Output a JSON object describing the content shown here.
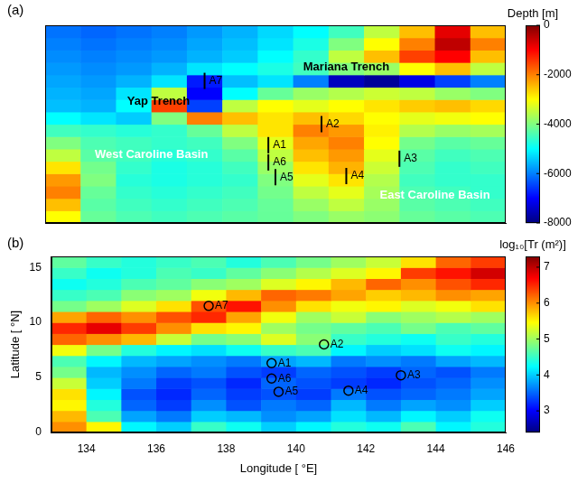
{
  "chart_data": [
    {
      "type": "heatmap",
      "panel_label": "(a)",
      "tick_labels": false,
      "grid": false,
      "xlim": [
        133,
        146
      ],
      "ylim": [
        0,
        16
      ],
      "x_edges": [
        133,
        134,
        135,
        136,
        137,
        138,
        139,
        140,
        141,
        142,
        143,
        144,
        145,
        146
      ],
      "y_edges": [
        0,
        1,
        2,
        3,
        4,
        5,
        6,
        7,
        8,
        9,
        10,
        11,
        12,
        13,
        14,
        15,
        16
      ],
      "cells": [
        [
          -3000,
          -4200,
          -4400,
          -4500,
          -4400,
          -4300,
          -4200,
          -4000,
          -3800,
          -3900,
          -4200,
          -4300,
          -4400
        ],
        [
          -2500,
          -4300,
          -4500,
          -4600,
          -4500,
          -4400,
          -4200,
          -3800,
          -3500,
          -3800,
          -4300,
          -4400,
          -4500
        ],
        [
          -2000,
          -4200,
          -4600,
          -4700,
          -4600,
          -4500,
          -4100,
          -3500,
          -3200,
          -3700,
          -4400,
          -4500,
          -4600
        ],
        [
          -2200,
          -4000,
          -4700,
          -4800,
          -4700,
          -4600,
          -4000,
          -3200,
          -2800,
          -3600,
          -4500,
          -4600,
          -4600
        ],
        [
          -2800,
          -4100,
          -4600,
          -4800,
          -4700,
          -4500,
          -3800,
          -2800,
          -2400,
          -3400,
          -4400,
          -4600,
          -4500
        ],
        [
          -3500,
          -4300,
          -4500,
          -4700,
          -4600,
          -4300,
          -3500,
          -2500,
          -2200,
          -3200,
          -4300,
          -4500,
          -4400
        ],
        [
          -4000,
          -4400,
          -4500,
          -4600,
          -4500,
          -4000,
          -3200,
          -2300,
          -2000,
          -3000,
          -4100,
          -4300,
          -4200
        ],
        [
          -4500,
          -4600,
          -4700,
          -4600,
          -4200,
          -3500,
          -2800,
          -2000,
          -2200,
          -2900,
          -3600,
          -3800,
          -3700
        ],
        [
          -5000,
          -5200,
          -5400,
          -4000,
          -2000,
          -2500,
          -2800,
          -2500,
          -2700,
          -3000,
          -3200,
          -3100,
          -3000
        ],
        [
          -5500,
          -5600,
          -5000,
          -1500,
          -6500,
          -3500,
          -3000,
          -3200,
          -3000,
          -2800,
          -2600,
          -2500,
          -2700
        ],
        [
          -5600,
          -5700,
          -5200,
          -3500,
          -7000,
          -5000,
          -4200,
          -3800,
          -3600,
          -3400,
          -3500,
          -3800,
          -4000
        ],
        [
          -5700,
          -5800,
          -5600,
          -5200,
          -6800,
          -5500,
          -5200,
          -6000,
          -7500,
          -7800,
          -7200,
          -6500,
          -6000
        ],
        [
          -5800,
          -5900,
          -5800,
          -5600,
          -5200,
          -5000,
          -4800,
          -4500,
          -4000,
          -3800,
          -3000,
          -2500,
          -3500
        ],
        [
          -5900,
          -6000,
          -5900,
          -5800,
          -5600,
          -5400,
          -5000,
          -4600,
          -3500,
          -2500,
          -1500,
          -1000,
          -2500
        ],
        [
          -6000,
          -6100,
          -6000,
          -5900,
          -5700,
          -5500,
          -5200,
          -4800,
          -4000,
          -3000,
          -2000,
          -500,
          -2000
        ],
        [
          -6100,
          -6200,
          -6100,
          -6000,
          -5800,
          -5600,
          -5300,
          -5000,
          -4500,
          -3500,
          -2500,
          -800,
          -2500
        ]
      ],
      "colorbar": {
        "title": "Depth [m]",
        "lim": [
          -8000,
          0
        ],
        "ticks": [
          -8000,
          -6000,
          -4000,
          -2000,
          0
        ]
      },
      "stations": {
        "names": [
          "A1",
          "A2",
          "A3",
          "A4",
          "A5",
          "A6",
          "A7"
        ],
        "x": [
          139.3,
          140.8,
          143.0,
          141.5,
          139.5,
          139.3,
          137.5
        ],
        "y": [
          6.3,
          8.0,
          5.2,
          3.8,
          3.7,
          4.9,
          11.5
        ],
        "marker": "line",
        "color": "#000000"
      },
      "annotations": [
        {
          "text": "Yap Trench",
          "x": 136.2,
          "y": 9.8,
          "color": "#000000"
        },
        {
          "text": "Mariana Trench",
          "x": 141.5,
          "y": 12.6,
          "color": "#000000"
        },
        {
          "text": "West Caroline Basin",
          "x": 136.0,
          "y": 5.5,
          "color": "#ffffff"
        },
        {
          "text": "East Caroline Basin",
          "x": 144.0,
          "y": 2.2,
          "color": "#ffffff"
        }
      ]
    },
    {
      "type": "heatmap",
      "panel_label": "(b)",
      "grid": false,
      "x_label": "Longitude [ °E]",
      "y_label": "Latitude [ °N]",
      "xlim": [
        133,
        146
      ],
      "ylim": [
        0,
        16
      ],
      "xticks": [
        134,
        136,
        138,
        140,
        142,
        144,
        146
      ],
      "yticks": [
        0,
        5,
        10,
        15
      ],
      "x_edges": [
        133,
        134,
        135,
        136,
        137,
        138,
        139,
        140,
        141,
        142,
        143,
        144,
        145,
        146
      ],
      "y_edges": [
        0,
        1,
        2,
        3,
        4,
        5,
        6,
        7,
        8,
        9,
        10,
        11,
        12,
        13,
        14,
        15,
        16
      ],
      "cells": [
        [
          6.0,
          5.5,
          4.2,
          4.0,
          4.5,
          4.3,
          4.0,
          4.2,
          4.4,
          4.3,
          4.6,
          4.2,
          4.4
        ],
        [
          5.8,
          4.6,
          3.8,
          3.6,
          4.0,
          3.9,
          3.7,
          3.8,
          4.1,
          3.9,
          4.2,
          4.0,
          4.3
        ],
        [
          5.5,
          4.4,
          3.5,
          3.3,
          3.7,
          3.4,
          3.6,
          3.5,
          3.9,
          3.6,
          3.8,
          3.7,
          4.0
        ],
        [
          5.6,
          4.2,
          3.4,
          3.2,
          3.5,
          3.3,
          3.4,
          3.3,
          3.6,
          3.4,
          3.5,
          3.6,
          3.8
        ],
        [
          5.2,
          4.0,
          3.6,
          3.3,
          3.4,
          3.2,
          3.5,
          3.4,
          3.3,
          3.2,
          3.4,
          3.5,
          3.7
        ],
        [
          4.8,
          3.9,
          3.7,
          3.5,
          3.6,
          3.4,
          3.3,
          3.5,
          3.4,
          3.3,
          3.5,
          3.4,
          3.6
        ],
        [
          4.6,
          4.2,
          3.9,
          3.8,
          3.7,
          3.6,
          3.8,
          3.9,
          3.6,
          3.7,
          3.6,
          3.8,
          3.9
        ],
        [
          5.4,
          4.8,
          4.4,
          4.2,
          4.1,
          4.3,
          4.5,
          4.6,
          4.2,
          4.0,
          4.1,
          4.3,
          4.2
        ],
        [
          6.2,
          6.0,
          5.8,
          5.2,
          4.8,
          4.9,
          5.3,
          4.9,
          4.5,
          4.4,
          4.3,
          4.5,
          4.4
        ],
        [
          6.5,
          6.8,
          6.4,
          6.0,
          5.6,
          5.5,
          5.0,
          4.8,
          4.7,
          4.6,
          4.8,
          4.6,
          4.7
        ],
        [
          5.9,
          6.2,
          6.0,
          6.3,
          6.5,
          5.9,
          5.4,
          5.0,
          5.2,
          4.9,
          5.0,
          5.1,
          5.0
        ],
        [
          4.8,
          5.0,
          5.3,
          5.6,
          6.3,
          6.6,
          6.0,
          5.6,
          5.4,
          5.5,
          5.3,
          5.4,
          5.6
        ],
        [
          4.5,
          4.6,
          4.9,
          5.0,
          5.4,
          5.8,
          6.2,
          6.1,
          5.9,
          5.7,
          5.8,
          6.0,
          5.9
        ],
        [
          4.3,
          4.4,
          4.6,
          4.7,
          4.9,
          5.0,
          5.3,
          5.5,
          5.8,
          6.2,
          6.0,
          6.3,
          6.5
        ],
        [
          4.5,
          4.3,
          4.4,
          4.6,
          4.5,
          4.7,
          4.9,
          5.1,
          5.3,
          5.5,
          6.4,
          6.6,
          6.9
        ],
        [
          4.7,
          4.5,
          4.4,
          4.5,
          4.6,
          4.4,
          4.6,
          4.8,
          5.0,
          5.2,
          5.6,
          6.2,
          6.4
        ]
      ],
      "colorbar": {
        "title": "log₁₀[Tr (m²)]",
        "lim": [
          2.4,
          7.3
        ],
        "ticks": [
          3,
          4,
          5,
          6,
          7
        ]
      },
      "stations": {
        "names": [
          "A1",
          "A2",
          "A3",
          "A4",
          "A5",
          "A6",
          "A7"
        ],
        "x": [
          139.3,
          140.8,
          143.0,
          141.5,
          139.5,
          139.3,
          137.5
        ],
        "y": [
          6.3,
          8.0,
          5.2,
          3.8,
          3.7,
          4.9,
          11.5
        ],
        "marker": "circle",
        "color": "#000000"
      }
    }
  ]
}
